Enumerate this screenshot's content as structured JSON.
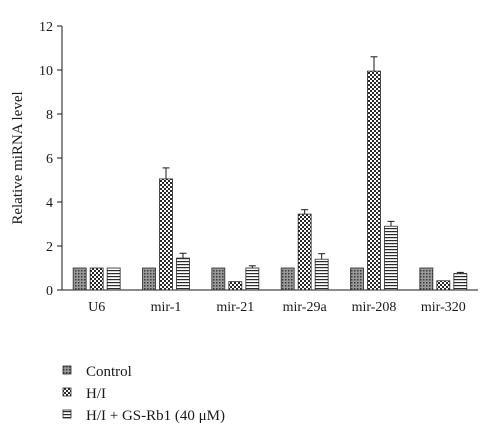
{
  "chart_data": {
    "type": "bar",
    "title": "",
    "xlabel": "",
    "ylabel": "Relative miRNA level",
    "ylim": [
      0,
      12
    ],
    "yticks": [
      0,
      2,
      4,
      6,
      8,
      10,
      12
    ],
    "yticks_text": [
      "0",
      "2",
      "4",
      "6",
      "8",
      "10",
      "12"
    ],
    "grid": false,
    "legend_position": "bottom-left",
    "categories": [
      "U6",
      "mir-1",
      "mir-21",
      "mir-29a",
      "mir-208",
      "mir-320"
    ],
    "series": [
      {
        "name": "Control",
        "pattern": "dots",
        "values": [
          1.0,
          1.0,
          1.0,
          1.0,
          1.0,
          1.0
        ],
        "errors": [
          0,
          0,
          0,
          0,
          0,
          0
        ]
      },
      {
        "name": "H/I",
        "pattern": "checker",
        "values": [
          1.0,
          5.05,
          0.38,
          3.45,
          9.95,
          0.42
        ],
        "errors": [
          0,
          0.5,
          0,
          0.2,
          0.65,
          0
        ]
      },
      {
        "name": "H/I + GS-Rb1 (40 μM)",
        "pattern": "hstripes",
        "values": [
          1.0,
          1.45,
          1.0,
          1.4,
          2.9,
          0.75
        ],
        "errors": [
          0,
          0.22,
          0.1,
          0.25,
          0.22,
          0.05
        ]
      }
    ],
    "colors": {
      "bar_stroke": "#2a2a2a",
      "axis": "#1a1a1a",
      "fill_dark": "#3a3a3a",
      "fill_light": "#ffffff"
    }
  }
}
